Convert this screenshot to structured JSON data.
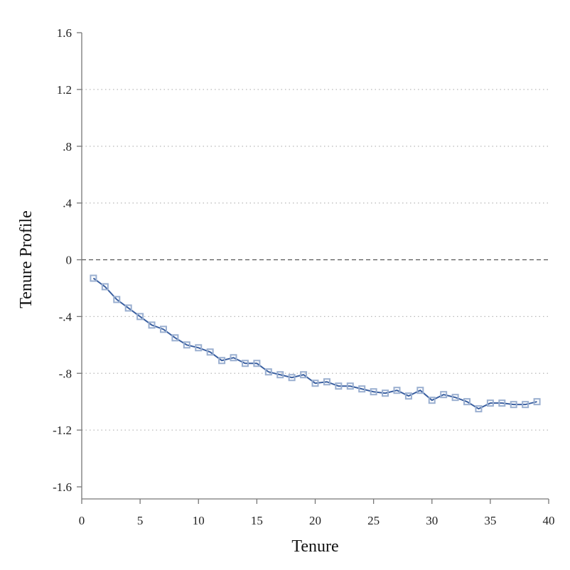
{
  "chart_data": {
    "type": "line",
    "title": "",
    "xlabel": "Tenure",
    "ylabel": "Tenure Profile",
    "xlim": [
      0,
      40
    ],
    "ylim": [
      -1.6,
      1.6
    ],
    "x_ticks": [
      0,
      5,
      10,
      15,
      20,
      25,
      30,
      35,
      40
    ],
    "x_tick_labels": [
      "0",
      "5",
      "10",
      "15",
      "20",
      "25",
      "30",
      "35",
      "40"
    ],
    "y_ticks": [
      1.6,
      1.2,
      0.8,
      0.4,
      0,
      -0.4,
      -0.8,
      -1.2,
      -1.6
    ],
    "y_tick_labels": [
      "1.6",
      "1.2",
      ".8",
      ".4",
      "0",
      "-.4",
      "-.8",
      "-1.2",
      "-1.6"
    ],
    "grid": "horizontal dotted",
    "reference_line_y": 0,
    "series": [
      {
        "color": "#3a5fa0",
        "marker": "hollow-square",
        "marker_color": "#9aafd0",
        "x": [
          1,
          2,
          3,
          4,
          5,
          6,
          7,
          8,
          9,
          10,
          11,
          12,
          13,
          14,
          15,
          16,
          17,
          18,
          19,
          20,
          21,
          22,
          23,
          24,
          25,
          26,
          27,
          28,
          29,
          30,
          31,
          32,
          33,
          34,
          35,
          36,
          37,
          38,
          39
        ],
        "y": [
          -0.13,
          -0.19,
          -0.28,
          -0.34,
          -0.4,
          -0.46,
          -0.49,
          -0.55,
          -0.6,
          -0.62,
          -0.65,
          -0.71,
          -0.69,
          -0.73,
          -0.73,
          -0.79,
          -0.81,
          -0.83,
          -0.81,
          -0.87,
          -0.86,
          -0.89,
          -0.89,
          -0.91,
          -0.93,
          -0.94,
          -0.92,
          -0.96,
          -0.92,
          -0.99,
          -0.95,
          -0.97,
          -1.0,
          -1.05,
          -1.01,
          -1.01,
          -1.02,
          -1.02,
          -1.0
        ]
      }
    ]
  }
}
